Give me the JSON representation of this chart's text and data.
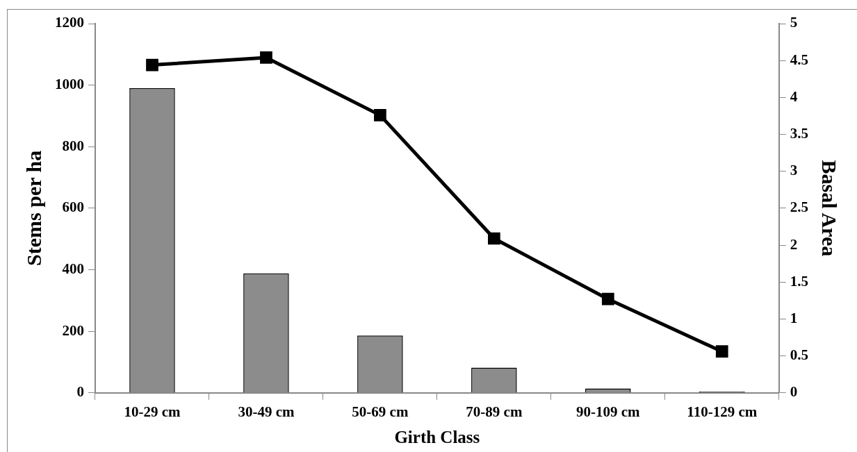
{
  "chart_data": {
    "type": "bar",
    "xlabel": "Girth Class",
    "ylabel": "Stems per ha",
    "y2label": "Basal Area",
    "categories": [
      "10-29 cm",
      "30-49 cm",
      "50-69 cm",
      "70-89 cm",
      "90-109 cm",
      "110-129 cm"
    ],
    "series": [
      {
        "color": "#8c8c8c",
        "values": [
          990,
          388,
          186,
          82,
          14,
          4
        ]
      },
      {
        "type": "line",
        "axis": "y2",
        "color": "#000000",
        "marker": "square",
        "values": [
          4.44,
          4.54,
          3.76,
          2.09,
          1.27,
          0.56
        ]
      }
    ],
    "ylim": [
      0,
      1200
    ],
    "yticks": [
      0,
      200,
      400,
      600,
      800,
      1000,
      1200
    ],
    "y2lim": [
      0,
      5
    ],
    "y2ticks": [
      0,
      0.5,
      1,
      1.5,
      2,
      2.5,
      3,
      3.5,
      4,
      4.5,
      5
    ],
    "grid": false,
    "legend": false
  }
}
